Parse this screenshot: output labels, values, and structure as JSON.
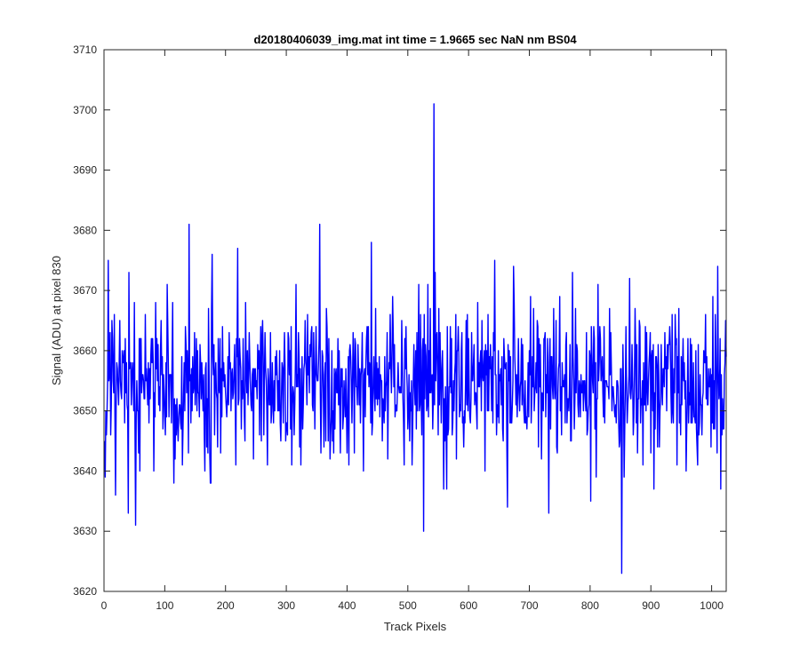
{
  "chart_data": {
    "type": "line",
    "title": "d20180406039_img.mat int time = 1.9665 sec  NaN nm BS04",
    "xlabel": "Track Pixels",
    "ylabel": "Signal (ADU) at pixel 830",
    "xlim": [
      0,
      1024
    ],
    "ylim": [
      3620,
      3710
    ],
    "xticks": [
      0,
      100,
      200,
      300,
      400,
      500,
      600,
      700,
      800,
      900,
      1000
    ],
    "yticks": [
      3620,
      3630,
      3640,
      3650,
      3660,
      3670,
      3680,
      3690,
      3700,
      3710
    ],
    "grid": false,
    "series": [
      {
        "color": "#0000ff",
        "noise_model": {
          "n_points": 1024,
          "mean": 3654.5,
          "std": 6.5,
          "min": 3630,
          "max": 3676,
          "seed": 20180406
        },
        "notable_points": [
          {
            "x": 1,
            "y": 3645
          },
          {
            "x": 7,
            "y": 3675
          },
          {
            "x": 40,
            "y": 3633
          },
          {
            "x": 52,
            "y": 3631
          },
          {
            "x": 140,
            "y": 3681
          },
          {
            "x": 220,
            "y": 3677
          },
          {
            "x": 355,
            "y": 3681
          },
          {
            "x": 440,
            "y": 3678
          },
          {
            "x": 526,
            "y": 3630
          },
          {
            "x": 543,
            "y": 3701
          },
          {
            "x": 852,
            "y": 3623
          },
          {
            "x": 1010,
            "y": 3674
          },
          {
            "x": 1015,
            "y": 3637
          },
          {
            "x": 1024,
            "y": 3659
          }
        ]
      }
    ]
  }
}
